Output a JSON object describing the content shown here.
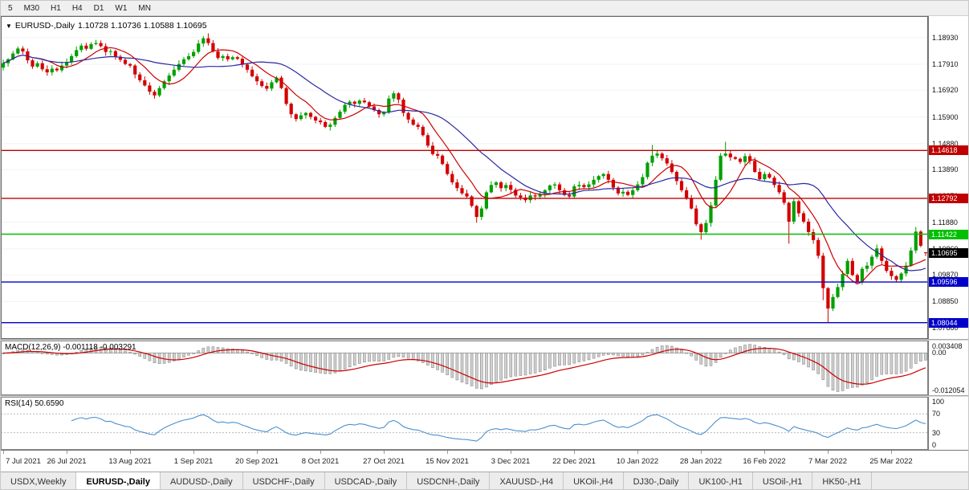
{
  "toolbar": {
    "periods": [
      "5",
      "M30",
      "H1",
      "H4",
      "D1",
      "W1",
      "MN"
    ]
  },
  "chart_header": {
    "marker": "▼",
    "symbol": "EURUSD-,Daily",
    "ohlc": "1.10728 1.10736 1.10588 1.10695"
  },
  "indicators": {
    "macd": {
      "label": "MACD(12,26,9)",
      "values": "-0.001118 -0.003291",
      "axis": {
        "max": "0.003408",
        "zero": "0.00",
        "min": "-0.012054"
      }
    },
    "rsi": {
      "label": "RSI(14)",
      "value": "50.6590",
      "axis": {
        "top": "100",
        "upper": "70",
        "lower": "30",
        "bottom": "0"
      }
    }
  },
  "tabs": {
    "items": [
      "USDX,Weekly",
      "EURUSD-,Daily",
      "AUDUSD-,Daily",
      "USDCHF-,Daily",
      "USDCAD-,Daily",
      "USDCNH-,Daily",
      "XAUUSD-,H4",
      "UKOil-,H4",
      "DJ30-,Daily",
      "UK100-,H1",
      "USOil-,H1",
      "HK50-,H1"
    ],
    "active_index": 1
  },
  "chart_data": {
    "type": "candlestick",
    "title": "EURUSD-,Daily",
    "symbol": "EURUSD-",
    "timeframe": "Daily",
    "current": {
      "open": 1.10728,
      "high": 1.10736,
      "low": 1.10588,
      "close": 1.10695
    },
    "price_axis": {
      "min": 1.0742,
      "max": 1.1975,
      "ticks": [
        1.1893,
        1.1791,
        1.1692,
        1.159,
        1.1488,
        1.1389,
        1.1287,
        1.1188,
        1.1086,
        1.0987,
        1.0885,
        1.0786
      ]
    },
    "levels": [
      {
        "price": 1.14618,
        "color": "#c00000"
      },
      {
        "price": 1.12792,
        "color": "#c00000"
      },
      {
        "price": 1.11422,
        "color": "#00c000"
      },
      {
        "price": 1.09596,
        "color": "#0000c8"
      },
      {
        "price": 1.08044,
        "color": "#0000c8"
      }
    ],
    "current_price": {
      "price": 1.10695,
      "color": "#000000"
    },
    "colors": {
      "bull": "#00a000",
      "bear": "#d40000",
      "ma_fast": "#cc0000",
      "ma_slow": "#2929a3",
      "macd_hist_fill": "#d0d0d0",
      "macd_hist_stroke": "#8a8a8a",
      "macd_signal": "#cc0000",
      "rsi_line": "#4a90d0"
    },
    "ma": [
      {
        "type": "sma",
        "period": 8,
        "color": "#cc0000"
      },
      {
        "type": "sma",
        "period": 21,
        "color": "#2929a3"
      }
    ],
    "macd": {
      "fast": 12,
      "slow": 26,
      "signal": 9
    },
    "rsi": {
      "period": 14,
      "levels": [
        70,
        30
      ]
    },
    "candles": {
      "default_wick": 0.0011,
      "closes": [
        1.1795,
        1.181,
        1.1832,
        1.1851,
        1.184,
        1.1806,
        1.1782,
        1.1795,
        1.1772,
        1.176,
        1.1774,
        1.1768,
        1.1786,
        1.18,
        1.1822,
        1.1845,
        1.1862,
        1.185,
        1.1868,
        1.1872,
        1.186,
        1.1838,
        1.1841,
        1.182,
        1.1808,
        1.1792,
        1.1786,
        1.1752,
        1.173,
        1.171,
        1.1686,
        1.1672,
        1.17,
        1.1726,
        1.1748,
        1.177,
        1.1792,
        1.181,
        1.1822,
        1.1838,
        1.187,
        1.189,
        1.1872,
        1.184,
        1.1815,
        1.1822,
        1.181,
        1.1818,
        1.1812,
        1.179,
        1.177,
        1.1745,
        1.1726,
        1.1708,
        1.1698,
        1.1722,
        1.174,
        1.17,
        1.164,
        1.16,
        1.1582,
        1.1596,
        1.1605,
        1.159,
        1.1576,
        1.157,
        1.1552,
        1.156,
        1.1586,
        1.161,
        1.1636,
        1.1648,
        1.164,
        1.1652,
        1.1646,
        1.163,
        1.1616,
        1.16,
        1.1608,
        1.166,
        1.168,
        1.1656,
        1.1605,
        1.158,
        1.156,
        1.1552,
        1.152,
        1.148,
        1.1448,
        1.1442,
        1.141,
        1.1372,
        1.134,
        1.1318,
        1.1298,
        1.1286,
        1.125,
        1.1208,
        1.124,
        1.1302,
        1.133,
        1.134,
        1.1318,
        1.133,
        1.1312,
        1.129,
        1.1282,
        1.1272,
        1.129,
        1.1286,
        1.1296,
        1.131,
        1.1328,
        1.1332,
        1.131,
        1.1292,
        1.1286,
        1.1325,
        1.133,
        1.1322,
        1.1332,
        1.135,
        1.1364,
        1.1372,
        1.135,
        1.132,
        1.1298,
        1.1304,
        1.1292,
        1.131,
        1.1332,
        1.136,
        1.1415,
        1.1442,
        1.145,
        1.1432,
        1.1412,
        1.138,
        1.1345,
        1.131,
        1.128,
        1.124,
        1.118,
        1.115,
        1.1185,
        1.1252,
        1.135,
        1.1442,
        1.145,
        1.1436,
        1.143,
        1.1418,
        1.144,
        1.1422,
        1.138,
        1.1352,
        1.1372,
        1.1358,
        1.133,
        1.1302,
        1.1262,
        1.119,
        1.1268,
        1.1222,
        1.119,
        1.115,
        1.112,
        1.106,
        1.0936,
        1.0858,
        1.0902,
        1.094,
        1.099,
        1.104,
        1.0986,
        1.0962,
        1.101,
        1.1022,
        1.1056,
        1.1088,
        1.104,
        1.1002,
        1.0982,
        1.0968,
        1.0992,
        1.1022,
        1.108,
        1.1152,
        1.1098,
        1.10695
      ],
      "overrides": {
        "0": {
          "open": 1.1778
        },
        "42": {
          "high": 1.1909
        },
        "97": {
          "low": 1.1186
        },
        "133": {
          "high": 1.1483
        },
        "143": {
          "low": 1.1121
        },
        "148": {
          "high": 1.1495
        },
        "161": {
          "low": 1.1106
        },
        "168": {
          "low": 1.089
        },
        "169": {
          "low": 1.08044
        },
        "187": {
          "high": 1.117
        },
        "189": {
          "open": 1.10728,
          "high": 1.10736,
          "low": 1.10588
        }
      }
    },
    "x_axis_labels": [
      {
        "label": "7 Jul 2021",
        "index": 0
      },
      {
        "label": "26 Jul 2021",
        "index": 13
      },
      {
        "label": "13 Aug 2021",
        "index": 26
      },
      {
        "label": "1 Sep 2021",
        "index": 39
      },
      {
        "label": "20 Sep 2021",
        "index": 52
      },
      {
        "label": "8 Oct 2021",
        "index": 65
      },
      {
        "label": "27 Oct 2021",
        "index": 78
      },
      {
        "label": "15 Nov 2021",
        "index": 91
      },
      {
        "label": "3 Dec 2021",
        "index": 104
      },
      {
        "label": "22 Dec 2021",
        "index": 117
      },
      {
        "label": "10 Jan 2022",
        "index": 130
      },
      {
        "label": "28 Jan 2022",
        "index": 143
      },
      {
        "label": "16 Feb 2022",
        "index": 156
      },
      {
        "label": "7 Mar 2022",
        "index": 169
      },
      {
        "label": "25 Mar 2022",
        "index": 182
      }
    ]
  }
}
